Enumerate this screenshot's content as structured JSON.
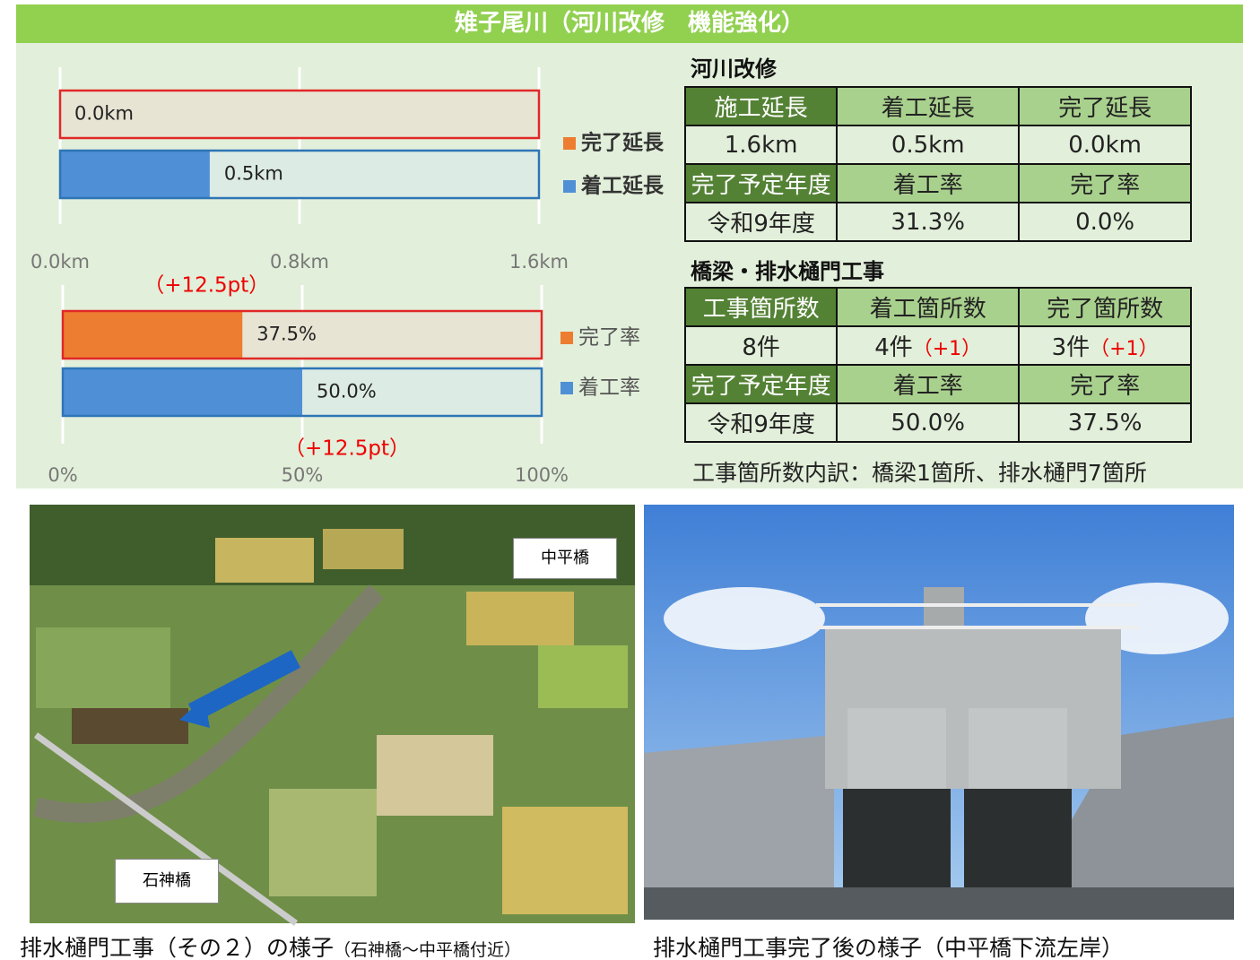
{
  "header": {
    "title": "雉子尾川（河川改修　機能強化）"
  },
  "chart_data": [
    {
      "type": "hbar",
      "categories": [
        "完了延長",
        "着工延長"
      ],
      "values": [
        0.0,
        0.5
      ],
      "value_labels": [
        "0.0km",
        "0.5km"
      ],
      "colors": [
        "#ed7d31",
        "#4f8fd6"
      ],
      "xlim": [
        0,
        1.6
      ],
      "xticks": [
        {
          "value": 0,
          "label": "0.0km"
        },
        {
          "value": 0.8,
          "label": "0.8km"
        },
        {
          "value": 1.6,
          "label": "1.6km"
        }
      ],
      "grid": true,
      "legend": "right"
    },
    {
      "type": "hbar",
      "categories": [
        "完了率",
        "着工率"
      ],
      "values": [
        37.5,
        50.0
      ],
      "value_labels": [
        "37.5%",
        "50.0%"
      ],
      "colors": [
        "#ed7d31",
        "#4f8fd6"
      ],
      "xlim": [
        0,
        100
      ],
      "xticks": [
        {
          "value": 0,
          "label": "0%"
        },
        {
          "value": 50,
          "label": "50%"
        },
        {
          "value": 100,
          "label": "100%"
        }
      ],
      "grid": true,
      "legend": "right",
      "annotations": [
        "（+12.5pt）",
        "（+12.5pt）"
      ]
    }
  ],
  "tables": [
    {
      "title": "河川改修",
      "rows": [
        [
          "施工延長",
          "着工延長",
          "完了延長"
        ],
        [
          "1.6km",
          "0.5km",
          "0.0km"
        ],
        [
          "完了予定年度",
          "着工率",
          "完了率"
        ],
        [
          "令和9年度",
          "31.3%",
          "0.0%"
        ]
      ]
    },
    {
      "title": "橋梁・排水樋門工事",
      "rows": [
        [
          "工事箇所数",
          "着工箇所数",
          "完了箇所数"
        ],
        [
          "8件",
          {
            "text": "4件",
            "note": "（+1）"
          },
          {
            "text": "3件",
            "note": "（+1）"
          }
        ],
        [
          "完了予定年度",
          "着工率",
          "完了率"
        ],
        [
          "令和9年度",
          "50.0%",
          "37.5%"
        ]
      ],
      "footnote": "工事箇所数内訳：橋梁1箇所、排水樋門7箇所"
    }
  ],
  "photos": [
    {
      "labels": [
        "中平橋",
        "石神橋"
      ],
      "caption": "排水樋門工事（その２）の様子",
      "caption_note": "（石神橋～中平橋付近）"
    },
    {
      "caption": "排水樋門工事完了後の様子（中平橋下流左岸）"
    }
  ]
}
